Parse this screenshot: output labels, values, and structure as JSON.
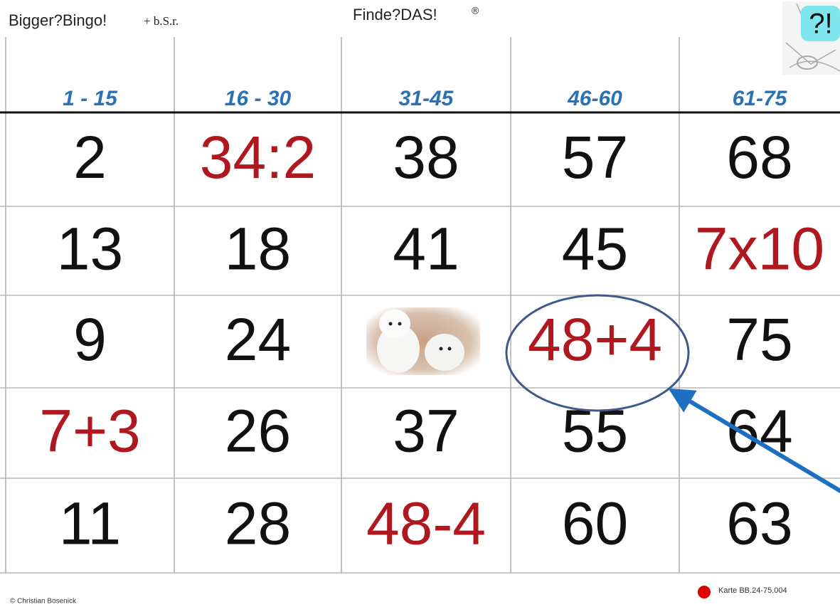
{
  "header": {
    "left_title": "Bigger?Bingo!",
    "left_suffix": "+ b.S.r.",
    "center_title": "Finde?DAS!",
    "center_mark": "®",
    "logo_text": "?!"
  },
  "columns": [
    "1 - 15",
    "16 - 30",
    "31-45",
    "46-60",
    "61-75"
  ],
  "rows": [
    [
      {
        "text": "2",
        "color": "#111111"
      },
      {
        "text": "34:2",
        "color": "#b01820"
      },
      {
        "text": "38",
        "color": "#111111"
      },
      {
        "text": "57",
        "color": "#111111"
      },
      {
        "text": "68",
        "color": "#111111"
      }
    ],
    [
      {
        "text": "13",
        "color": "#111111"
      },
      {
        "text": "18",
        "color": "#111111"
      },
      {
        "text": "41",
        "color": "#111111"
      },
      {
        "text": "45",
        "color": "#111111"
      },
      {
        "text": "7x10",
        "color": "#b01820"
      }
    ],
    [
      {
        "text": "9",
        "color": "#111111"
      },
      {
        "text": "24",
        "color": "#111111"
      },
      null,
      {
        "text": "48+4",
        "color": "#b01820"
      },
      {
        "text": "75",
        "color": "#111111"
      }
    ],
    [
      {
        "text": "7+3",
        "color": "#b01820"
      },
      {
        "text": "26",
        "color": "#111111"
      },
      {
        "text": "37",
        "color": "#111111"
      },
      {
        "text": "55",
        "color": "#111111"
      },
      {
        "text": "64",
        "color": "#111111"
      }
    ],
    [
      {
        "text": "11",
        "color": "#111111"
      },
      {
        "text": "28",
        "color": "#111111"
      },
      {
        "text": "48-4",
        "color": "#b01820"
      },
      {
        "text": "60",
        "color": "#111111"
      },
      {
        "text": "63",
        "color": "#111111"
      }
    ]
  ],
  "footer": {
    "copyright": "© Christian Bosenick",
    "card_id": "Karte BB.24-75.004"
  }
}
